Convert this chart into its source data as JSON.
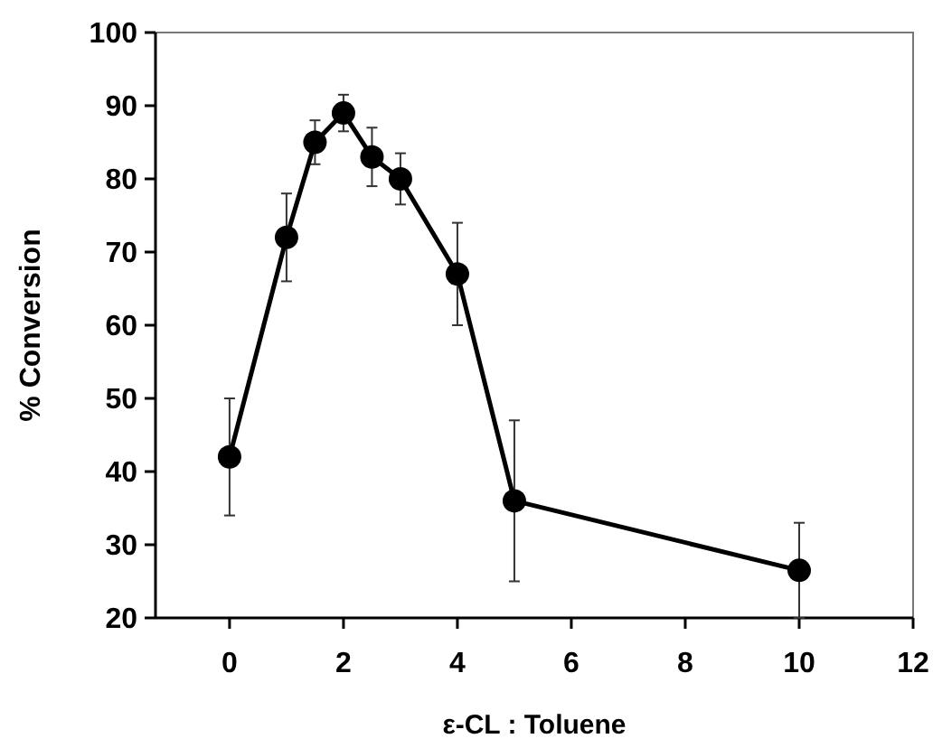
{
  "chart_data": {
    "type": "line",
    "xlabel": "ε-CL : Toluene",
    "ylabel": "% Conversion",
    "x": [
      0,
      1,
      1.5,
      2,
      2.5,
      3,
      4,
      5,
      10
    ],
    "series": [
      {
        "color": "#000000",
        "values": [
          42,
          72,
          85,
          89,
          83,
          80,
          67,
          36,
          26.5
        ],
        "errors": [
          [
            34,
            50
          ],
          [
            66,
            78
          ],
          [
            82,
            88
          ],
          [
            86.5,
            91.5
          ],
          [
            79,
            87
          ],
          [
            76.5,
            83.5
          ],
          [
            60,
            74
          ],
          [
            25,
            47
          ],
          [
            20,
            33
          ]
        ]
      }
    ],
    "xlim": [
      -1.3,
      12
    ],
    "xticks": [
      0,
      2,
      4,
      6,
      8,
      10,
      12
    ],
    "ylim": [
      20,
      100
    ],
    "yticks": [
      20,
      30,
      40,
      50,
      60,
      70,
      80,
      90,
      100
    ],
    "marker": "circle",
    "line_style": "solid",
    "grid": false
  }
}
